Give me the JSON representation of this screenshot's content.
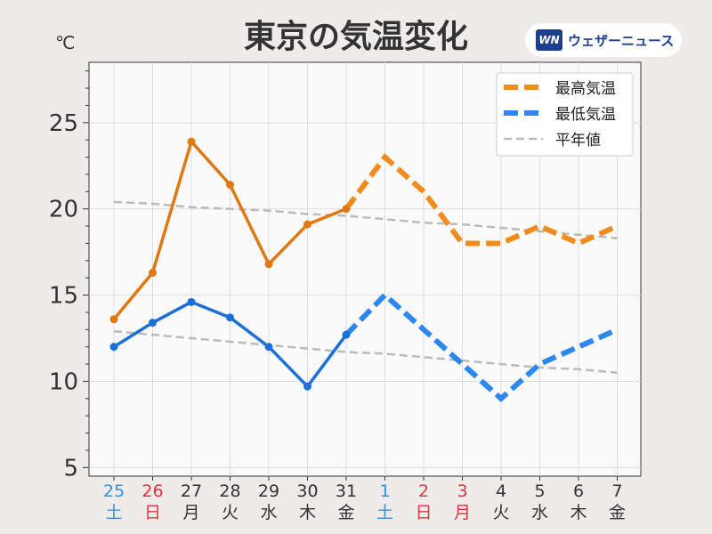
{
  "title": "東京の気温変化",
  "unit": "℃",
  "logo": {
    "mark": "WN",
    "text": "ウェザーニュース"
  },
  "colors": {
    "max": "#f08c1e",
    "max_obs": "#e07812",
    "min": "#2c88ee",
    "min_obs": "#1a70d8",
    "normal": "#bbbbbb",
    "day_weekday": "#333333",
    "day_saturday": "#3a8fd8",
    "day_holiday": "#d9363e"
  },
  "chart_data": {
    "type": "line",
    "title": "東京の気温変化",
    "ylabel": "℃",
    "ylim": [
      4.5,
      28.5
    ],
    "yticks": [
      5,
      10,
      15,
      20,
      25
    ],
    "grid": true,
    "legend_position": "top-right",
    "categories": [
      {
        "date": "25",
        "day": "土",
        "kind": "saturday"
      },
      {
        "date": "26",
        "day": "日",
        "kind": "holiday"
      },
      {
        "date": "27",
        "day": "月",
        "kind": "weekday"
      },
      {
        "date": "28",
        "day": "火",
        "kind": "weekday"
      },
      {
        "date": "29",
        "day": "水",
        "kind": "weekday"
      },
      {
        "date": "30",
        "day": "木",
        "kind": "weekday"
      },
      {
        "date": "31",
        "day": "金",
        "kind": "weekday"
      },
      {
        "date": "1",
        "day": "土",
        "kind": "saturday"
      },
      {
        "date": "2",
        "day": "日",
        "kind": "holiday"
      },
      {
        "date": "3",
        "day": "月",
        "kind": "holiday"
      },
      {
        "date": "4",
        "day": "火",
        "kind": "weekday"
      },
      {
        "date": "5",
        "day": "水",
        "kind": "weekday"
      },
      {
        "date": "6",
        "day": "木",
        "kind": "weekday"
      },
      {
        "date": "7",
        "day": "金",
        "kind": "weekday"
      }
    ],
    "series": [
      {
        "name": "最高気温",
        "observed": [
          13.6,
          16.3,
          23.9,
          21.4,
          16.8,
          19.1,
          20.0
        ],
        "forecast": [
          20.0,
          23.0,
          21.0,
          18.0,
          18.0,
          19.0,
          18.0,
          19.0
        ]
      },
      {
        "name": "最低気温",
        "observed": [
          12.0,
          13.4,
          14.6,
          13.7,
          12.0,
          9.7,
          12.7
        ],
        "forecast": [
          12.7,
          15.0,
          13.0,
          11.0,
          9.0,
          11.0,
          12.0,
          13.0
        ]
      },
      {
        "name": "平年値",
        "normal_max": [
          20.4,
          20.3,
          20.1,
          20.0,
          19.9,
          19.7,
          19.6,
          19.4,
          19.2,
          19.1,
          18.9,
          18.7,
          18.5,
          18.3
        ],
        "normal_min": [
          12.9,
          12.7,
          12.5,
          12.3,
          12.1,
          11.9,
          11.7,
          11.6,
          11.4,
          11.2,
          11.0,
          10.8,
          10.7,
          10.5
        ]
      }
    ],
    "legend": [
      "最高気温",
      "最低気温",
      "平年値"
    ]
  }
}
